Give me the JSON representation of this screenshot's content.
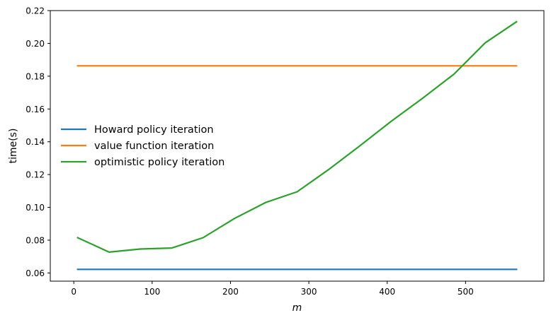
{
  "chart_data": {
    "type": "line",
    "xlabel": "m",
    "ylabel": "time(s)",
    "xlim": [
      -30,
      600
    ],
    "ylim": [
      0.055,
      0.22
    ],
    "xticks": [
      0,
      100,
      200,
      300,
      400,
      500
    ],
    "xtick_labels": [
      "0",
      "100",
      "200",
      "300",
      "400",
      "500"
    ],
    "yticks": [
      0.06,
      0.08,
      0.1,
      0.12,
      0.14,
      0.16,
      0.18,
      0.2,
      0.22
    ],
    "ytick_labels": [
      "0.06",
      "0.08",
      "0.10",
      "0.12",
      "0.14",
      "0.16",
      "0.18",
      "0.20",
      "0.22"
    ],
    "legend_position": "center-left",
    "grid": false,
    "series": [
      {
        "name": "Howard policy iteration",
        "color": "#1f77b4",
        "x": [
          5,
          565
        ],
        "y": [
          0.0622,
          0.0622
        ]
      },
      {
        "name": "value function iteration",
        "color": "#ff7f0e",
        "x": [
          5,
          565
        ],
        "y": [
          0.1863,
          0.1863
        ]
      },
      {
        "name": "optimistic policy iteration",
        "color": "#2ca02c",
        "x": [
          5,
          45,
          85,
          125,
          165,
          205,
          245,
          285,
          325,
          365,
          405,
          445,
          485,
          525,
          565
        ],
        "y": [
          0.0815,
          0.0727,
          0.0746,
          0.0752,
          0.0815,
          0.0932,
          0.103,
          0.1095,
          0.123,
          0.1375,
          0.1525,
          0.1665,
          0.1812,
          0.2003,
          0.2132
        ]
      }
    ]
  }
}
